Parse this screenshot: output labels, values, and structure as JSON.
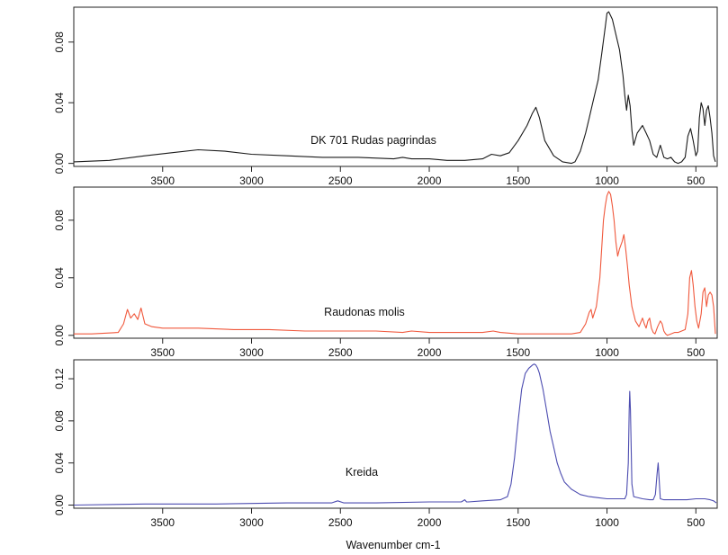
{
  "chart_data": [
    {
      "type": "line",
      "annotation": "DK 701 Rudas pagrindas",
      "color": "#1a1a1a",
      "xlim": [
        4000,
        380
      ],
      "ylim": [
        -0.002,
        0.103
      ],
      "x_ticks": [
        3500,
        3000,
        2500,
        2000,
        1500,
        1000,
        500
      ],
      "x_tick_labels": [
        "3500",
        "3000",
        "2500",
        "2000",
        "1500",
        "1000",
        "500"
      ],
      "y_ticks": [
        0.0,
        0.04,
        0.08
      ],
      "y_tick_labels": [
        "0.00",
        "0.04",
        "0.08"
      ],
      "x": [
        4000,
        3800,
        3600,
        3450,
        3300,
        3150,
        3000,
        2800,
        2600,
        2400,
        2200,
        2150,
        2100,
        2000,
        1900,
        1800,
        1700,
        1650,
        1600,
        1550,
        1500,
        1450,
        1420,
        1400,
        1380,
        1350,
        1300,
        1250,
        1200,
        1180,
        1150,
        1120,
        1100,
        1080,
        1050,
        1030,
        1010,
        1000,
        990,
        970,
        950,
        930,
        910,
        900,
        890,
        880,
        870,
        860,
        850,
        830,
        800,
        780,
        760,
        740,
        720,
        700,
        690,
        680,
        660,
        640,
        620,
        600,
        580,
        560,
        545,
        530,
        515,
        500,
        490,
        480,
        470,
        460,
        450,
        440,
        430,
        420,
        410,
        400,
        390
      ],
      "y": [
        0.001,
        0.002,
        0.005,
        0.007,
        0.009,
        0.008,
        0.006,
        0.005,
        0.004,
        0.004,
        0.003,
        0.004,
        0.003,
        0.003,
        0.002,
        0.002,
        0.003,
        0.006,
        0.005,
        0.007,
        0.015,
        0.025,
        0.033,
        0.037,
        0.03,
        0.015,
        0.005,
        0.001,
        0.0,
        0.001,
        0.008,
        0.02,
        0.03,
        0.04,
        0.055,
        0.072,
        0.09,
        0.099,
        0.1,
        0.095,
        0.085,
        0.075,
        0.058,
        0.045,
        0.035,
        0.045,
        0.038,
        0.022,
        0.012,
        0.02,
        0.025,
        0.02,
        0.015,
        0.006,
        0.004,
        0.012,
        0.008,
        0.004,
        0.003,
        0.004,
        0.001,
        0.0,
        0.001,
        0.004,
        0.018,
        0.023,
        0.015,
        0.005,
        0.008,
        0.03,
        0.04,
        0.036,
        0.025,
        0.035,
        0.038,
        0.03,
        0.02,
        0.005,
        0.001
      ]
    },
    {
      "type": "line",
      "annotation": "Raudonas molis",
      "color": "#f0583c",
      "xlim": [
        4000,
        380
      ],
      "ylim": [
        -0.002,
        0.103
      ],
      "x_ticks": [
        3500,
        3000,
        2500,
        2000,
        1500,
        1000,
        500
      ],
      "x_tick_labels": [
        "3500",
        "3000",
        "2500",
        "2000",
        "1500",
        "1000",
        "500"
      ],
      "y_ticks": [
        0.0,
        0.04,
        0.08
      ],
      "y_tick_labels": [
        "0.00",
        "0.04",
        "0.08"
      ],
      "x": [
        4000,
        3900,
        3750,
        3720,
        3698,
        3680,
        3660,
        3640,
        3622,
        3600,
        3560,
        3500,
        3300,
        3100,
        2900,
        2700,
        2500,
        2300,
        2150,
        2100,
        2000,
        1900,
        1800,
        1700,
        1640,
        1600,
        1500,
        1400,
        1300,
        1250,
        1200,
        1150,
        1120,
        1100,
        1090,
        1080,
        1060,
        1040,
        1030,
        1020,
        1010,
        1000,
        990,
        980,
        970,
        960,
        950,
        940,
        930,
        915,
        905,
        895,
        885,
        875,
        860,
        840,
        820,
        800,
        790,
        780,
        770,
        760,
        750,
        740,
        730,
        715,
        700,
        690,
        680,
        670,
        660,
        640,
        620,
        600,
        580,
        560,
        545,
        535,
        525,
        515,
        505,
        495,
        485,
        470,
        460,
        450,
        440,
        430,
        420,
        410,
        400,
        390
      ],
      "y": [
        0.001,
        0.001,
        0.002,
        0.008,
        0.018,
        0.012,
        0.015,
        0.011,
        0.019,
        0.008,
        0.006,
        0.005,
        0.005,
        0.004,
        0.004,
        0.003,
        0.003,
        0.003,
        0.002,
        0.003,
        0.002,
        0.002,
        0.002,
        0.002,
        0.003,
        0.002,
        0.001,
        0.001,
        0.001,
        0.001,
        0.001,
        0.002,
        0.008,
        0.016,
        0.018,
        0.012,
        0.02,
        0.04,
        0.06,
        0.08,
        0.09,
        0.097,
        0.1,
        0.098,
        0.09,
        0.08,
        0.065,
        0.055,
        0.06,
        0.065,
        0.07,
        0.06,
        0.048,
        0.035,
        0.02,
        0.01,
        0.006,
        0.012,
        0.008,
        0.005,
        0.01,
        0.012,
        0.005,
        0.002,
        0.001,
        0.006,
        0.01,
        0.008,
        0.003,
        0.001,
        0.0,
        0.001,
        0.002,
        0.002,
        0.003,
        0.004,
        0.015,
        0.04,
        0.045,
        0.035,
        0.02,
        0.01,
        0.005,
        0.015,
        0.03,
        0.033,
        0.02,
        0.028,
        0.03,
        0.028,
        0.02,
        0.001
      ]
    },
    {
      "type": "line",
      "annotation": "Kreida",
      "color": "#4c4cb0",
      "xlim": [
        4000,
        380
      ],
      "ylim": [
        -0.003,
        0.138
      ],
      "x_ticks": [
        3500,
        3000,
        2500,
        2000,
        1500,
        1000,
        500
      ],
      "x_tick_labels": [
        "3500",
        "3000",
        "2500",
        "2000",
        "1500",
        "1000",
        "500"
      ],
      "y_ticks": [
        0.0,
        0.04,
        0.08,
        0.12
      ],
      "y_tick_labels": [
        "0.00",
        "0.04",
        "0.08",
        "0.12"
      ],
      "xlabel": "Wavenumber cm-1",
      "x": [
        4000,
        3600,
        3200,
        2800,
        2550,
        2515,
        2480,
        2300,
        2000,
        1820,
        1800,
        1790,
        1780,
        1700,
        1600,
        1560,
        1540,
        1520,
        1500,
        1480,
        1460,
        1440,
        1420,
        1410,
        1400,
        1390,
        1380,
        1360,
        1340,
        1320,
        1300,
        1280,
        1260,
        1240,
        1200,
        1150,
        1100,
        1050,
        1000,
        950,
        900,
        890,
        880,
        875,
        872,
        868,
        860,
        850,
        800,
        760,
        740,
        728,
        718,
        712,
        705,
        700,
        680,
        600,
        550,
        500,
        450,
        420,
        400,
        385
      ],
      "y": [
        0.0,
        0.001,
        0.001,
        0.002,
        0.002,
        0.004,
        0.002,
        0.002,
        0.003,
        0.003,
        0.005,
        0.003,
        0.003,
        0.004,
        0.005,
        0.008,
        0.02,
        0.045,
        0.08,
        0.11,
        0.125,
        0.13,
        0.133,
        0.134,
        0.133,
        0.13,
        0.125,
        0.11,
        0.09,
        0.07,
        0.055,
        0.04,
        0.03,
        0.022,
        0.015,
        0.01,
        0.008,
        0.007,
        0.006,
        0.006,
        0.006,
        0.01,
        0.04,
        0.09,
        0.108,
        0.09,
        0.02,
        0.008,
        0.006,
        0.005,
        0.005,
        0.01,
        0.03,
        0.04,
        0.02,
        0.006,
        0.005,
        0.005,
        0.005,
        0.006,
        0.006,
        0.005,
        0.004,
        0.002
      ]
    }
  ]
}
